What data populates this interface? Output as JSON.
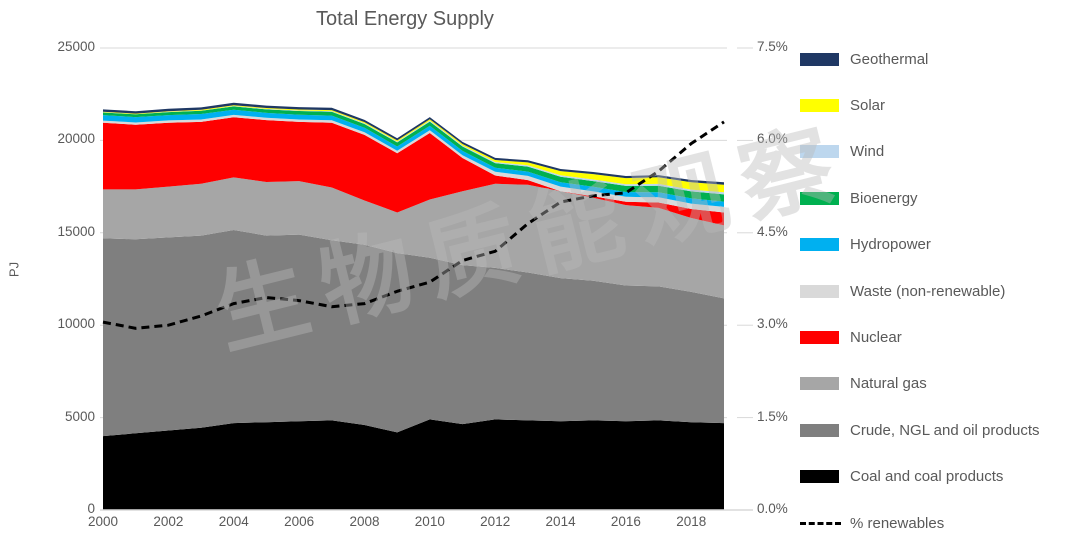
{
  "title": "Total Energy Supply",
  "watermark": "生物质能观察",
  "left_axis": {
    "label": "PJ",
    "tick_values": [
      25000,
      20000,
      15000,
      10000,
      5000,
      0
    ],
    "tick_labels": [
      "25000",
      "20000",
      "15000",
      "10000",
      "5000",
      "0"
    ]
  },
  "right_axis": {
    "tick_values": [
      7.5,
      6.0,
      4.5,
      3.0,
      1.5,
      0.0
    ],
    "tick_labels": [
      "7.5%",
      "6.0%",
      "4.5%",
      "3.0%",
      "1.5%",
      "0.0%"
    ]
  },
  "x_axis": {
    "tick_years": [
      2000,
      2002,
      2004,
      2006,
      2008,
      2010,
      2012,
      2014,
      2016,
      2018
    ]
  },
  "legend": [
    {
      "label": "Geothermal",
      "color": "#1F3864",
      "swatch": "box"
    },
    {
      "label": "Solar",
      "color": "#FFFF00",
      "swatch": "box"
    },
    {
      "label": "Wind",
      "color": "#BDD7EE",
      "swatch": "box"
    },
    {
      "label": "Bioenergy",
      "color": "#00B050",
      "swatch": "box"
    },
    {
      "label": "Hydropower",
      "color": "#00B0F0",
      "swatch": "box"
    },
    {
      "label": "Waste (non-renewable)",
      "color": "#D9D9D9",
      "swatch": "box"
    },
    {
      "label": "Nuclear",
      "color": "#FF0000",
      "swatch": "box"
    },
    {
      "label": "Natural gas",
      "color": "#A6A6A6",
      "swatch": "box"
    },
    {
      "label": "Crude, NGL and oil products",
      "color": "#7F7F7F",
      "swatch": "box"
    },
    {
      "label": "Coal and coal products",
      "color": "#000000",
      "swatch": "box"
    },
    {
      "label": "% renewables",
      "color": "#000000",
      "swatch": "dashed-line"
    }
  ],
  "chart_data": {
    "type": "area",
    "stacked": true,
    "title": "Total Energy Supply",
    "ylabel": "PJ",
    "ylim": [
      0,
      25000
    ],
    "y2lim": [
      0,
      7.5
    ],
    "grid": "horizontal",
    "legend_position": "right",
    "x": [
      2000,
      2001,
      2002,
      2003,
      2004,
      2005,
      2006,
      2007,
      2008,
      2009,
      2010,
      2011,
      2012,
      2013,
      2014,
      2015,
      2016,
      2017,
      2018,
      2019
    ],
    "series": [
      {
        "name": "Coal and coal products",
        "color": "#000000",
        "values": [
          4000,
          4150,
          4300,
          4450,
          4700,
          4750,
          4800,
          4850,
          4600,
          4200,
          4900,
          4650,
          4900,
          4850,
          4800,
          4850,
          4800,
          4850,
          4750,
          4700
        ]
      },
      {
        "name": "Crude, NGL and oil products",
        "color": "#7F7F7F",
        "values": [
          10700,
          10500,
          10450,
          10400,
          10450,
          10100,
          10100,
          9750,
          9750,
          9700,
          8750,
          8600,
          8200,
          8000,
          7750,
          7550,
          7350,
          7250,
          7050,
          6750
        ]
      },
      {
        "name": "Natural gas",
        "color": "#A6A6A6",
        "values": [
          2650,
          2700,
          2750,
          2800,
          2850,
          2900,
          2900,
          2850,
          2400,
          2200,
          3150,
          4000,
          4550,
          4750,
          4700,
          4500,
          4350,
          4250,
          4000,
          3950
        ]
      },
      {
        "name": "Nuclear",
        "color": "#FF0000",
        "values": [
          3600,
          3500,
          3450,
          3350,
          3250,
          3350,
          3200,
          3500,
          3550,
          3200,
          3600,
          1800,
          450,
          250,
          0,
          80,
          180,
          290,
          490,
          700
        ]
      },
      {
        "name": "Waste (non-renewable)",
        "color": "#D9D9D9",
        "values": [
          120,
          120,
          130,
          130,
          130,
          130,
          130,
          140,
          140,
          140,
          150,
          150,
          200,
          230,
          250,
          260,
          270,
          280,
          290,
          300
        ]
      },
      {
        "name": "Hydropower",
        "color": "#00B0F0",
        "values": [
          300,
          290,
          290,
          300,
          280,
          260,
          260,
          250,
          240,
          230,
          240,
          230,
          220,
          230,
          240,
          250,
          260,
          270,
          280,
          290
        ]
      },
      {
        "name": "Bioenergy",
        "color": "#00B050",
        "values": [
          140,
          150,
          160,
          170,
          180,
          190,
          200,
          210,
          210,
          220,
          230,
          240,
          250,
          270,
          290,
          310,
          330,
          360,
          380,
          390
        ]
      },
      {
        "name": "Wind",
        "color": "#BDD7EE",
        "values": [
          10,
          10,
          15,
          15,
          20,
          25,
          30,
          35,
          40,
          45,
          50,
          55,
          60,
          70,
          80,
          85,
          90,
          95,
          100,
          110
        ]
      },
      {
        "name": "Solar",
        "color": "#FFFF00",
        "values": [
          30,
          30,
          35,
          40,
          45,
          50,
          50,
          55,
          60,
          65,
          70,
          80,
          110,
          160,
          230,
          290,
          330,
          360,
          390,
          410
        ]
      },
      {
        "name": "Geothermal",
        "color": "#1F3864",
        "values": [
          130,
          130,
          130,
          130,
          130,
          130,
          130,
          125,
          120,
          120,
          120,
          115,
          115,
          115,
          115,
          115,
          115,
          120,
          125,
          130
        ]
      }
    ],
    "line_series": [
      {
        "name": "% renewables",
        "axis": "right",
        "style": "dashed",
        "color": "#000000",
        "values": [
          3.05,
          2.95,
          3.0,
          3.15,
          3.35,
          3.45,
          3.4,
          3.3,
          3.35,
          3.55,
          3.7,
          4.05,
          4.2,
          4.65,
          5.0,
          5.1,
          5.15,
          5.5,
          5.95,
          6.3
        ]
      }
    ]
  }
}
